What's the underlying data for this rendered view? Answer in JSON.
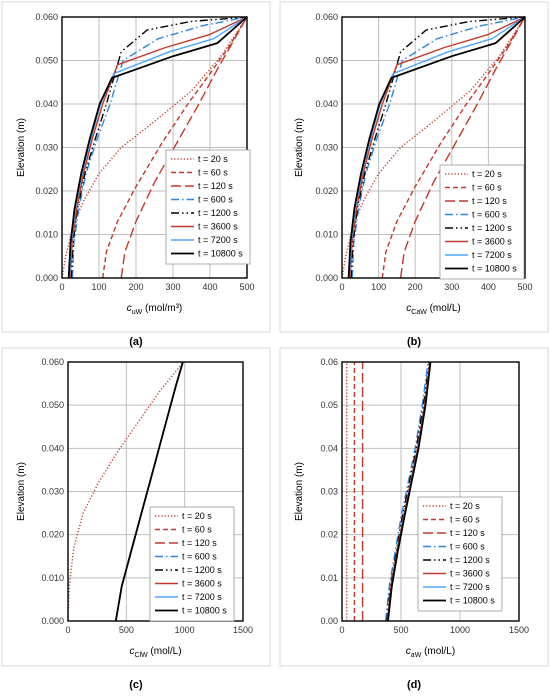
{
  "panels": [
    {
      "caption": "(a)",
      "ylabel": "Elevation (m)",
      "xlabel_main": "c",
      "xlabel_sub": "uW",
      "xlabel_unit": " (mol/m³)"
    },
    {
      "caption": "(b)",
      "ylabel": "Elevation (m)",
      "xlabel_main": "c",
      "xlabel_sub": "CaW",
      "xlabel_unit": " (mol/L)"
    },
    {
      "caption": "(c)",
      "ylabel": "Elevation (m)",
      "xlabel_main": "c",
      "xlabel_sub": "ClW",
      "xlabel_unit": " (mol/L)"
    },
    {
      "caption": "(d)",
      "ylabel": "Elevation (m)",
      "xlabel_main": "c",
      "xlabel_sub": "aW",
      "xlabel_unit": " (mol/L)"
    }
  ],
  "styles": [
    {
      "color": "#c0392b",
      "dash": "1.2,2"
    },
    {
      "color": "#c0392b",
      "dash": "5,3"
    },
    {
      "color": "#c0392b",
      "dash": "10,4"
    },
    {
      "color": "#2e86de",
      "dash": "8,3,1.5,3"
    },
    {
      "color": "#000000",
      "dash": "8,3,1.5,3,1.5,3"
    },
    {
      "color": "#c0392b",
      "dash": ""
    },
    {
      "color": "#4da6ff",
      "dash": ""
    },
    {
      "color": "#000000",
      "dash": ""
    }
  ],
  "chart_data": [
    {
      "type": "line",
      "xlim": [
        0,
        500
      ],
      "ylim": [
        0,
        0.06
      ],
      "xticks": [
        "0",
        "100",
        "200",
        "300",
        "400",
        "500"
      ],
      "yticks": [
        "0.000",
        "0.010",
        "0.020",
        "0.030",
        "0.040",
        "0.050",
        "0.060"
      ],
      "legend_position": "bottom-right",
      "series": [
        {
          "name": "t = 20 s",
          "x": [
            0,
            10,
            30,
            60,
            100,
            160,
            250,
            350,
            430,
            500
          ],
          "y": [
            0,
            0.005,
            0.012,
            0.018,
            0.024,
            0.03,
            0.036,
            0.043,
            0.051,
            0.06
          ]
        },
        {
          "name": "t = 60 s",
          "x": [
            110,
            120,
            150,
            200,
            270,
            340,
            400,
            450,
            500
          ],
          "y": [
            0,
            0.006,
            0.013,
            0.021,
            0.031,
            0.04,
            0.047,
            0.053,
            0.06
          ]
        },
        {
          "name": "t = 120 s",
          "x": [
            160,
            170,
            200,
            250,
            310,
            370,
            420,
            460,
            500
          ],
          "y": [
            0,
            0.006,
            0.013,
            0.022,
            0.031,
            0.04,
            0.048,
            0.054,
            0.06
          ]
        },
        {
          "name": "t = 600 s",
          "x": [
            28,
            32,
            45,
            65,
            95,
            130,
            165,
            260,
            380,
            500
          ],
          "y": [
            0,
            0.008,
            0.016,
            0.024,
            0.032,
            0.04,
            0.05,
            0.055,
            0.058,
            0.06
          ]
        },
        {
          "name": "t = 1200 s",
          "x": [
            25,
            30,
            42,
            62,
            90,
            120,
            160,
            230,
            350,
            500
          ],
          "y": [
            0,
            0.008,
            0.016,
            0.024,
            0.032,
            0.04,
            0.052,
            0.057,
            0.059,
            0.06
          ]
        },
        {
          "name": "t = 3600 s",
          "x": [
            22,
            27,
            40,
            58,
            82,
            110,
            150,
            280,
            400,
            500
          ],
          "y": [
            0,
            0.008,
            0.016,
            0.024,
            0.032,
            0.04,
            0.049,
            0.053,
            0.056,
            0.06
          ]
        },
        {
          "name": "t = 7200 s",
          "x": [
            20,
            25,
            36,
            54,
            78,
            104,
            140,
            290,
            410,
            500
          ],
          "y": [
            0,
            0.008,
            0.016,
            0.024,
            0.032,
            0.04,
            0.047,
            0.052,
            0.055,
            0.06
          ]
        },
        {
          "name": "t = 10800 s",
          "x": [
            18,
            23,
            34,
            52,
            75,
            102,
            135,
            300,
            420,
            500
          ],
          "y": [
            0,
            0.008,
            0.016,
            0.024,
            0.032,
            0.04,
            0.046,
            0.051,
            0.054,
            0.06
          ]
        }
      ]
    },
    {
      "type": "line",
      "xlim": [
        0,
        500
      ],
      "ylim": [
        0,
        0.06
      ],
      "xticks": [
        "0",
        "100",
        "200",
        "300",
        "400",
        "500"
      ],
      "yticks": [
        "0.000",
        "0.010",
        "0.020",
        "0.030",
        "0.040",
        "0.050",
        "0.060"
      ],
      "legend_position": "bottom-right",
      "series": [
        {
          "name": "t = 20 s",
          "x": [
            0,
            10,
            30,
            60,
            100,
            160,
            250,
            350,
            430,
            500
          ],
          "y": [
            0,
            0.005,
            0.012,
            0.018,
            0.024,
            0.03,
            0.036,
            0.043,
            0.051,
            0.06
          ]
        },
        {
          "name": "t = 60 s",
          "x": [
            110,
            120,
            150,
            200,
            270,
            340,
            400,
            450,
            500
          ],
          "y": [
            0,
            0.006,
            0.013,
            0.021,
            0.031,
            0.04,
            0.047,
            0.053,
            0.06
          ]
        },
        {
          "name": "t = 120 s",
          "x": [
            160,
            170,
            200,
            250,
            310,
            370,
            420,
            460,
            500
          ],
          "y": [
            0,
            0.006,
            0.013,
            0.022,
            0.031,
            0.04,
            0.048,
            0.054,
            0.06
          ]
        },
        {
          "name": "t = 600 s",
          "x": [
            28,
            32,
            45,
            65,
            95,
            130,
            165,
            260,
            380,
            500
          ],
          "y": [
            0,
            0.008,
            0.016,
            0.024,
            0.032,
            0.04,
            0.05,
            0.055,
            0.058,
            0.06
          ]
        },
        {
          "name": "t = 1200 s",
          "x": [
            25,
            30,
            42,
            62,
            90,
            120,
            160,
            230,
            350,
            500
          ],
          "y": [
            0,
            0.008,
            0.016,
            0.024,
            0.032,
            0.04,
            0.052,
            0.057,
            0.059,
            0.06
          ]
        },
        {
          "name": "t = 3600 s",
          "x": [
            22,
            27,
            40,
            58,
            82,
            110,
            150,
            280,
            400,
            500
          ],
          "y": [
            0,
            0.008,
            0.016,
            0.024,
            0.032,
            0.04,
            0.049,
            0.053,
            0.056,
            0.06
          ]
        },
        {
          "name": "t = 7200 s",
          "x": [
            20,
            25,
            36,
            54,
            78,
            104,
            140,
            290,
            410,
            500
          ],
          "y": [
            0,
            0.008,
            0.016,
            0.024,
            0.032,
            0.04,
            0.047,
            0.052,
            0.055,
            0.06
          ]
        },
        {
          "name": "t = 10800 s",
          "x": [
            18,
            23,
            34,
            52,
            75,
            102,
            135,
            300,
            420,
            500
          ],
          "y": [
            0,
            0.008,
            0.016,
            0.024,
            0.032,
            0.04,
            0.046,
            0.051,
            0.054,
            0.06
          ]
        }
      ]
    },
    {
      "type": "line",
      "xlim": [
        0,
        1500
      ],
      "ylim": [
        0,
        0.06
      ],
      "xticks": [
        "0",
        "500",
        "1000",
        "1500"
      ],
      "yticks": [
        "0.000",
        "0.010",
        "0.020",
        "0.030",
        "0.040",
        "0.050",
        "0.060"
      ],
      "legend_position": "bottom-right",
      "series": [
        {
          "name": "t = 20 s",
          "x": [
            0,
            10,
            50,
            130,
            260,
            420,
            600,
            780,
            990
          ],
          "y": [
            0,
            0.008,
            0.017,
            0.025,
            0.032,
            0.039,
            0.046,
            0.053,
            0.06
          ]
        },
        {
          "name": "t = 60 s",
          "x": [
            410,
            460,
            540,
            620,
            700,
            780,
            860,
            930,
            985
          ],
          "y": [
            0,
            0.008,
            0.016,
            0.024,
            0.032,
            0.04,
            0.048,
            0.055,
            0.06
          ]
        },
        {
          "name": "t = 120 s",
          "x": [
            410,
            460,
            540,
            620,
            700,
            780,
            860,
            930,
            985
          ],
          "y": [
            0,
            0.008,
            0.016,
            0.024,
            0.032,
            0.04,
            0.048,
            0.055,
            0.06
          ]
        },
        {
          "name": "t = 600 s",
          "x": [
            410,
            460,
            540,
            620,
            700,
            780,
            860,
            930,
            985
          ],
          "y": [
            0,
            0.008,
            0.016,
            0.024,
            0.032,
            0.04,
            0.048,
            0.055,
            0.06
          ]
        },
        {
          "name": "t = 1200 s",
          "x": [
            410,
            460,
            540,
            620,
            700,
            780,
            860,
            930,
            985
          ],
          "y": [
            0,
            0.008,
            0.016,
            0.024,
            0.032,
            0.04,
            0.048,
            0.055,
            0.06
          ]
        },
        {
          "name": "t = 3600 s",
          "x": [
            410,
            460,
            540,
            620,
            700,
            780,
            860,
            930,
            985
          ],
          "y": [
            0,
            0.008,
            0.016,
            0.024,
            0.032,
            0.04,
            0.048,
            0.055,
            0.06
          ]
        },
        {
          "name": "t = 7200 s",
          "x": [
            410,
            460,
            540,
            620,
            700,
            780,
            860,
            930,
            985
          ],
          "y": [
            0,
            0.008,
            0.016,
            0.024,
            0.032,
            0.04,
            0.048,
            0.055,
            0.06
          ]
        },
        {
          "name": "t = 10800 s",
          "x": [
            410,
            460,
            540,
            620,
            700,
            780,
            860,
            930,
            985
          ],
          "y": [
            0,
            0.008,
            0.016,
            0.024,
            0.032,
            0.04,
            0.048,
            0.055,
            0.06
          ]
        }
      ]
    },
    {
      "type": "line",
      "xlim": [
        0,
        1500
      ],
      "ylim": [
        0,
        0.06
      ],
      "xticks": [
        "0",
        "500",
        "1000",
        "1500"
      ],
      "yticks": [
        "0.00",
        "0.01",
        "0.02",
        "0.03",
        "0.04",
        "0.05",
        "0.06"
      ],
      "legend_position": "bottom-right",
      "series": [
        {
          "name": "t = 20 s",
          "x": [
            40,
            40,
            40,
            40
          ],
          "y": [
            0,
            0.02,
            0.04,
            0.06
          ]
        },
        {
          "name": "t = 60 s",
          "x": [
            105,
            105,
            105,
            105
          ],
          "y": [
            0,
            0.02,
            0.04,
            0.06
          ]
        },
        {
          "name": "t = 120 s",
          "x": [
            175,
            175,
            175,
            175
          ],
          "y": [
            0,
            0.02,
            0.04,
            0.06
          ]
        },
        {
          "name": "t = 600 s",
          "x": [
            370,
            400,
            450,
            500,
            560,
            620,
            680,
            730
          ],
          "y": [
            0,
            0.008,
            0.016,
            0.024,
            0.032,
            0.04,
            0.05,
            0.06
          ]
        },
        {
          "name": "t = 1200 s",
          "x": [
            380,
            410,
            460,
            510,
            570,
            630,
            690,
            740
          ],
          "y": [
            0,
            0.008,
            0.016,
            0.024,
            0.032,
            0.04,
            0.05,
            0.06
          ]
        },
        {
          "name": "t = 3600 s",
          "x": [
            385,
            415,
            465,
            520,
            580,
            640,
            700,
            745
          ],
          "y": [
            0,
            0.008,
            0.016,
            0.024,
            0.032,
            0.04,
            0.05,
            0.06
          ]
        },
        {
          "name": "t = 7200 s",
          "x": [
            388,
            420,
            470,
            525,
            585,
            645,
            705,
            748
          ],
          "y": [
            0,
            0.008,
            0.016,
            0.024,
            0.032,
            0.04,
            0.05,
            0.06
          ]
        },
        {
          "name": "t = 10800 s",
          "x": [
            390,
            422,
            472,
            528,
            588,
            648,
            708,
            750
          ],
          "y": [
            0,
            0.008,
            0.016,
            0.024,
            0.032,
            0.04,
            0.05,
            0.06
          ]
        }
      ]
    }
  ]
}
